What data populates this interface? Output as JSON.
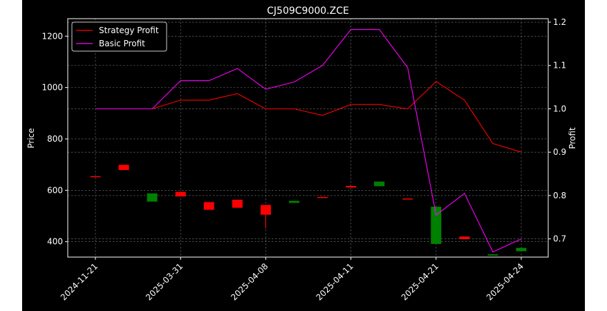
{
  "chart_data": {
    "type": "candlestick",
    "title": "CJ509C9000.ZCE",
    "xlabel": "",
    "ylabel_left": "Price",
    "ylabel_right": "Profit",
    "ylim_left": [
      340,
      1268
    ],
    "ylim_right": [
      0.658,
      1.208
    ],
    "yticks_left": [
      400,
      600,
      800,
      1000,
      1200
    ],
    "yticks_right": [
      0.7,
      0.8,
      0.9,
      1.0,
      1.1,
      1.2
    ],
    "xtick_labels": [
      "2024-11-21",
      "2025-03-31",
      "2025-04-08",
      "2025-04-11",
      "2025-04-21",
      "2025-04-24"
    ],
    "xtick_index": [
      0,
      3,
      6,
      9,
      12,
      15
    ],
    "grid": true,
    "legend_position": "top-left",
    "legend": [
      {
        "name": "Strategy Profit",
        "color": "#ff0000"
      },
      {
        "name": "Basic Profit",
        "color": "#ff00ff"
      }
    ],
    "candles": [
      {
        "open": 655,
        "close": 655,
        "high": 655,
        "low": 655
      },
      {
        "open": 679,
        "close": 699,
        "high": 699,
        "low": 679
      },
      {
        "open": 588,
        "close": 556,
        "high": 588,
        "low": 556
      },
      {
        "open": 576,
        "close": 594,
        "high": 594,
        "low": 576
      },
      {
        "open": 524,
        "close": 554,
        "high": 554,
        "low": 524
      },
      {
        "open": 532,
        "close": 563,
        "high": 563,
        "low": 532
      },
      {
        "open": 505,
        "close": 543,
        "high": 543,
        "low": 452
      },
      {
        "open": 559,
        "close": 551,
        "high": 559,
        "low": 551
      },
      {
        "open": 574,
        "close": 574,
        "high": 574,
        "low": 574
      },
      {
        "open": 611,
        "close": 617,
        "high": 617,
        "low": 611
      },
      {
        "open": 634,
        "close": 616,
        "high": 634,
        "low": 616
      },
      {
        "open": 568,
        "close": 568,
        "high": 568,
        "low": 568
      },
      {
        "open": 536,
        "close": 391,
        "high": 536,
        "low": 391
      },
      {
        "open": 410,
        "close": 420,
        "high": 420,
        "low": 410
      },
      {
        "open": 351,
        "close": 346,
        "high": 351,
        "low": 346
      },
      {
        "open": 376,
        "close": 363,
        "high": 376,
        "low": 363
      }
    ],
    "series": [
      {
        "name": "Strategy Profit",
        "axis": "right",
        "color": "#ff0000",
        "values": [
          1.0,
          1.0,
          1.0,
          1.02,
          1.02,
          1.035,
          1.0,
          1.0,
          0.985,
          1.01,
          1.01,
          1.0,
          1.063,
          1.02,
          0.92,
          0.9
        ]
      },
      {
        "name": "Basic Profit",
        "axis": "right",
        "color": "#ff00ff",
        "values": [
          1.0,
          1.0,
          1.0,
          1.065,
          1.065,
          1.093,
          1.045,
          1.062,
          1.1,
          1.183,
          1.183,
          1.095,
          0.755,
          0.805,
          0.67,
          0.7
        ]
      }
    ]
  }
}
